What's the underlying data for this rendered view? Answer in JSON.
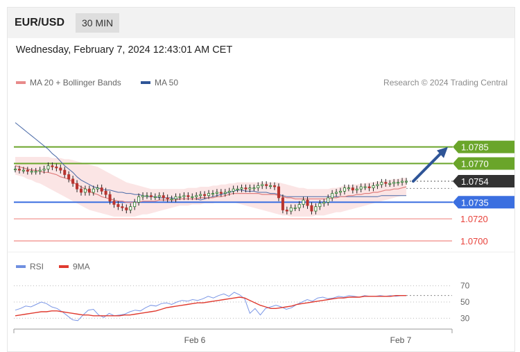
{
  "header": {
    "pair": "EUR/USD",
    "timeframe": "30 MIN"
  },
  "datetime": "Wednesday, February 7, 2024 12:43:01 AM CET",
  "legend_main": [
    {
      "label": "MA 20 + Bollinger Bands",
      "color": "#e88a8a"
    },
    {
      "label": "MA 50",
      "color": "#2f5597"
    }
  ],
  "research": "Research © 2024 Trading Central",
  "legend_rsi": [
    {
      "label": "RSI",
      "color": "#6f8fe0"
    },
    {
      "label": "9MA",
      "color": "#e03a2f"
    }
  ],
  "colors": {
    "resistance": "#6aa52a",
    "support": "#3b6fe0",
    "minor_support": "#e8413a",
    "current": "#333333",
    "arrow": "#2f5597"
  },
  "chart_data": [
    {
      "type": "candlestick",
      "title": "EUR/USD",
      "ylim": [
        1.0695,
        1.083
      ],
      "current_price": "1.0754",
      "levels": [
        {
          "value": 1.0785,
          "label": "1.0785",
          "kind": "resistance"
        },
        {
          "value": 1.077,
          "label": "1.0770",
          "kind": "resistance"
        },
        {
          "value": 1.0754,
          "label": "1.0754",
          "kind": "current"
        },
        {
          "value": 1.0735,
          "label": "1.0735",
          "kind": "support"
        },
        {
          "value": 1.072,
          "label": "1.0720",
          "kind": "minor_support"
        },
        {
          "value": 1.07,
          "label": "1.0700",
          "kind": "minor_support"
        }
      ],
      "close": [
        1.0765,
        1.0764,
        1.0764,
        1.0763,
        1.0763,
        1.0763,
        1.0764,
        1.0765,
        1.0768,
        1.0767,
        1.0766,
        1.0764,
        1.076,
        1.0756,
        1.0752,
        1.0747,
        1.0744,
        1.0747,
        1.0744,
        1.0747,
        1.0748,
        1.0745,
        1.0742,
        1.0736,
        1.0733,
        1.0731,
        1.073,
        1.0728,
        1.0731,
        1.0735,
        1.074,
        1.0741,
        1.0741,
        1.074,
        1.074,
        1.0741,
        1.0739,
        1.0738,
        1.0738,
        1.074,
        1.074,
        1.0741,
        1.074,
        1.074,
        1.0741,
        1.0742,
        1.0741,
        1.0743,
        1.0743,
        1.0744,
        1.0743,
        1.0744,
        1.0745,
        1.0747,
        1.0747,
        1.0748,
        1.0747,
        1.0748,
        1.0748,
        1.075,
        1.0751,
        1.075,
        1.075,
        1.0749,
        1.0739,
        1.0728,
        1.0727,
        1.073,
        1.073,
        1.0733,
        1.0737,
        1.0732,
        1.0727,
        1.0731,
        1.0734,
        1.0735,
        1.0739,
        1.0743,
        1.0744,
        1.0745,
        1.0748,
        1.0748,
        1.0746,
        1.0747,
        1.0749,
        1.0749,
        1.0748,
        1.075,
        1.0751,
        1.0753,
        1.0752,
        1.0752,
        1.0753,
        1.0753,
        1.0754,
        1.0754
      ],
      "ma50": [
        1.0807,
        1.0804,
        1.0801,
        1.0798,
        1.0795,
        1.0792,
        1.0789,
        1.0786,
        1.0783,
        1.0779,
        1.0776,
        1.0772,
        1.0768,
        1.0765,
        1.0762,
        1.0758,
        1.0755,
        1.0753,
        1.0751,
        1.0749,
        1.0748,
        1.0747,
        1.0746,
        1.0746,
        1.0745,
        1.0744,
        1.0744,
        1.0743,
        1.0743,
        1.0742,
        1.0742,
        1.0741,
        1.074,
        1.074,
        1.074,
        1.0739,
        1.0739,
        1.0739,
        1.0739,
        1.0738,
        1.0738,
        1.0738,
        1.0738,
        1.0738,
        1.0738,
        1.0737,
        1.0738,
        1.0739,
        1.074,
        1.0741,
        1.0742,
        1.0743,
        1.0744,
        1.0745,
        1.0746,
        1.0746,
        1.0745,
        1.0745,
        1.0745,
        1.0744,
        1.0744,
        1.0744,
        1.0743,
        1.0743,
        1.0742,
        1.0741,
        1.074,
        1.074,
        1.074,
        1.074,
        1.074,
        1.074,
        1.074,
        1.074,
        1.074,
        1.074,
        1.074,
        1.074,
        1.074,
        1.074,
        1.074,
        1.074,
        1.074,
        1.074,
        1.074,
        1.074,
        1.074,
        1.074,
        1.074,
        1.0741,
        1.0741,
        1.0741,
        1.0741,
        1.0741,
        1.0741,
        1.0741
      ],
      "ma20": [
        1.0768,
        1.0767,
        1.0766,
        1.0765,
        1.0764,
        1.0764,
        1.0763,
        1.0762,
        1.0762,
        1.0761,
        1.076,
        1.0758,
        1.0757,
        1.0756,
        1.0753,
        1.0751,
        1.0749,
        1.0747,
        1.0745,
        1.0743,
        1.0742,
        1.074,
        1.0739,
        1.0738,
        1.0737,
        1.0736,
        1.0736,
        1.0735,
        1.0735,
        1.0735,
        1.0735,
        1.0736,
        1.0736,
        1.0736,
        1.0736,
        1.0737,
        1.0737,
        1.0737,
        1.0737,
        1.0737,
        1.0738,
        1.0738,
        1.0738,
        1.0738,
        1.0738,
        1.0739,
        1.0739,
        1.0739,
        1.0739,
        1.074,
        1.074,
        1.0741,
        1.0742,
        1.0743,
        1.0743,
        1.0743,
        1.0743,
        1.0743,
        1.0743,
        1.0743,
        1.0742,
        1.0742,
        1.0742,
        1.0742,
        1.0741,
        1.074,
        1.0739,
        1.0739,
        1.0738,
        1.0738,
        1.0738,
        1.0738,
        1.0738,
        1.0738,
        1.0738,
        1.0738,
        1.0738,
        1.0739,
        1.0739,
        1.074,
        1.074,
        1.0741,
        1.0741,
        1.0742,
        1.0742,
        1.0743,
        1.0743,
        1.0744,
        1.0744,
        1.0745,
        1.0746,
        1.0746,
        1.0747,
        1.0747,
        1.0748,
        1.0749
      ],
      "bb_upper": [
        1.0776,
        1.0776,
        1.0776,
        1.0776,
        1.0776,
        1.0776,
        1.0776,
        1.0776,
        1.0776,
        1.0775,
        1.0775,
        1.0775,
        1.0774,
        1.0774,
        1.0773,
        1.0772,
        1.0771,
        1.077,
        1.0769,
        1.0768,
        1.0767,
        1.0765,
        1.0763,
        1.0761,
        1.0759,
        1.0757,
        1.0755,
        1.0753,
        1.0752,
        1.0751,
        1.075,
        1.0749,
        1.0748,
        1.0747,
        1.0747,
        1.0747,
        1.0747,
        1.0747,
        1.0747,
        1.0747,
        1.0747,
        1.0747,
        1.0748,
        1.0748,
        1.0748,
        1.0749,
        1.0749,
        1.0749,
        1.075,
        1.075,
        1.0751,
        1.0751,
        1.0752,
        1.0752,
        1.0753,
        1.0753,
        1.0753,
        1.0753,
        1.0753,
        1.0753,
        1.0753,
        1.0753,
        1.0753,
        1.0753,
        1.0753,
        1.0752,
        1.0751,
        1.075,
        1.0749,
        1.0748,
        1.0748,
        1.0747,
        1.0747,
        1.0747,
        1.0747,
        1.0747,
        1.0747,
        1.0748,
        1.0748,
        1.0749,
        1.075,
        1.075,
        1.0751,
        1.0751,
        1.0752,
        1.0752,
        1.0753,
        1.0753,
        1.0754,
        1.0754,
        1.0755,
        1.0755,
        1.0756,
        1.0756,
        1.0757,
        1.0757
      ],
      "bb_lower": [
        1.076,
        1.0759,
        1.0758,
        1.0756,
        1.0755,
        1.0753,
        1.0752,
        1.075,
        1.0748,
        1.0746,
        1.0744,
        1.0742,
        1.074,
        1.0738,
        1.0736,
        1.0734,
        1.0732,
        1.073,
        1.0728,
        1.0727,
        1.0726,
        1.0725,
        1.0724,
        1.0723,
        1.0722,
        1.0722,
        1.0722,
        1.0722,
        1.0722,
        1.0722,
        1.0723,
        1.0724,
        1.0724,
        1.0725,
        1.0726,
        1.0727,
        1.0728,
        1.0729,
        1.073,
        1.0731,
        1.0732,
        1.0732,
        1.0732,
        1.0733,
        1.0733,
        1.0733,
        1.0734,
        1.0734,
        1.0734,
        1.0735,
        1.0735,
        1.0735,
        1.0735,
        1.0735,
        1.0734,
        1.0733,
        1.0732,
        1.0731,
        1.073,
        1.0729,
        1.0728,
        1.0727,
        1.0726,
        1.0725,
        1.0724,
        1.0723,
        1.0723,
        1.0722,
        1.0722,
        1.0722,
        1.0722,
        1.0722,
        1.0722,
        1.0723,
        1.0723,
        1.0723,
        1.0724,
        1.0725,
        1.0726,
        1.0726,
        1.0727,
        1.0728,
        1.0729,
        1.073,
        1.0731,
        1.0732,
        1.0733,
        1.0734,
        1.0735,
        1.0736,
        1.0737,
        1.0738,
        1.0739,
        1.074,
        1.0741,
        1.0741
      ],
      "projection": {
        "from": 1.0754,
        "to": 1.0785
      }
    },
    {
      "type": "line",
      "title": "RSI",
      "ylim": [
        20,
        80
      ],
      "yticks": [
        "70",
        "50",
        "30"
      ],
      "xticks": [
        "Feb 6",
        "Feb 7"
      ],
      "rsi": [
        40,
        42,
        45,
        44,
        47,
        50,
        48,
        44,
        42,
        38,
        33,
        28,
        27,
        34,
        40,
        41,
        34,
        31,
        36,
        33,
        34,
        35,
        38,
        40,
        39,
        43,
        46,
        45,
        48,
        49,
        47,
        50,
        52,
        51,
        53,
        52,
        54,
        57,
        55,
        58,
        60,
        57,
        62,
        59,
        54,
        36,
        42,
        34,
        42,
        44,
        46,
        44,
        41,
        43,
        47,
        50,
        53,
        51,
        55,
        56,
        54,
        55,
        57,
        56,
        58,
        57,
        56,
        58,
        57,
        57,
        58,
        57,
        58,
        57,
        58,
        58
      ],
      "ma9": [
        33,
        34,
        35,
        36,
        37,
        38,
        38,
        39,
        39,
        38,
        37,
        36,
        35,
        34,
        34,
        33,
        33,
        33,
        33,
        33,
        33,
        34,
        34,
        35,
        36,
        37,
        38,
        39,
        41,
        43,
        44,
        45,
        46,
        47,
        48,
        49,
        49,
        50,
        51,
        52,
        53,
        54,
        55,
        56,
        55,
        52,
        49,
        46,
        44,
        42,
        42,
        43,
        44,
        45,
        47,
        48,
        49,
        50,
        51,
        52,
        53,
        54,
        55,
        55,
        56,
        56,
        56,
        57,
        57,
        57,
        57,
        57,
        57,
        58,
        58,
        58
      ]
    }
  ]
}
